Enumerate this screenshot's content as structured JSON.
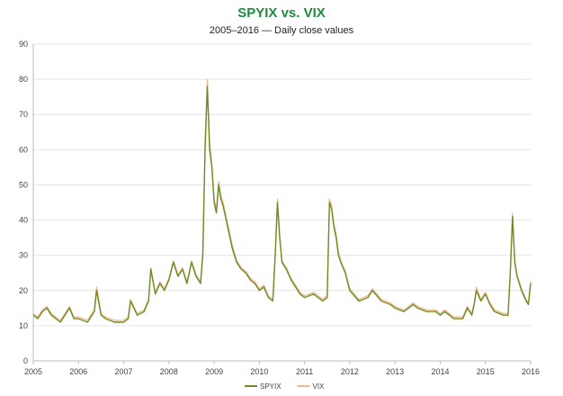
{
  "chart_data": {
    "type": "line",
    "title": "SPYIX vs. VIX",
    "subtitle": "2005–2016 — Daily close values",
    "xlabel": "",
    "ylabel": "",
    "xlim": [
      2005,
      2016
    ],
    "ylim": [
      0,
      90
    ],
    "x_ticks": [
      "2005",
      "2006",
      "2007",
      "2008",
      "2009",
      "2010",
      "2011",
      "2012",
      "2013",
      "2014",
      "2015",
      "2016"
    ],
    "y_ticks": [
      "0",
      "10",
      "20",
      "30",
      "40",
      "50",
      "60",
      "70",
      "80",
      "90"
    ],
    "grid": "horizontal",
    "legend_position": "bottom",
    "colors": {
      "SPYIX": "#6b8e23",
      "VIX": "#f5b48a",
      "title": "#1e8a3c",
      "grid": "#e4e4e4"
    },
    "series": [
      {
        "name": "SPYIX",
        "x": [
          2005.0,
          2005.1,
          2005.2,
          2005.3,
          2005.4,
          2005.5,
          2005.6,
          2005.7,
          2005.8,
          2005.9,
          2006.0,
          2006.2,
          2006.35,
          2006.4,
          2006.5,
          2006.6,
          2006.8,
          2007.0,
          2007.1,
          2007.15,
          2007.3,
          2007.45,
          2007.55,
          2007.6,
          2007.7,
          2007.8,
          2007.9,
          2008.0,
          2008.1,
          2008.2,
          2008.3,
          2008.4,
          2008.5,
          2008.6,
          2008.7,
          2008.75,
          2008.8,
          2008.85,
          2008.9,
          2008.95,
          2009.0,
          2009.05,
          2009.1,
          2009.15,
          2009.2,
          2009.3,
          2009.4,
          2009.5,
          2009.6,
          2009.7,
          2009.8,
          2009.9,
          2010.0,
          2010.1,
          2010.2,
          2010.3,
          2010.35,
          2010.4,
          2010.45,
          2010.5,
          2010.6,
          2010.7,
          2010.8,
          2010.9,
          2011.0,
          2011.2,
          2011.4,
          2011.5,
          2011.55,
          2011.6,
          2011.65,
          2011.7,
          2011.75,
          2011.8,
          2011.9,
          2012.0,
          2012.2,
          2012.4,
          2012.5,
          2012.7,
          2012.9,
          2013.0,
          2013.2,
          2013.4,
          2013.5,
          2013.7,
          2013.9,
          2014.0,
          2014.1,
          2014.3,
          2014.5,
          2014.6,
          2014.7,
          2014.75,
          2014.8,
          2014.9,
          2015.0,
          2015.1,
          2015.2,
          2015.4,
          2015.5,
          2015.55,
          2015.6,
          2015.65,
          2015.7,
          2015.8,
          2015.9,
          2015.95,
          2016.0
        ],
        "values": [
          13,
          12,
          14,
          15,
          13,
          12,
          11,
          13,
          15,
          12,
          12,
          11,
          14,
          20,
          13,
          12,
          11,
          11,
          12,
          17,
          13,
          14,
          17,
          26,
          19,
          22,
          20,
          23,
          28,
          24,
          26,
          22,
          28,
          24,
          22,
          30,
          60,
          78,
          60,
          55,
          45,
          42,
          50,
          46,
          44,
          38,
          32,
          28,
          26,
          25,
          23,
          22,
          20,
          21,
          18,
          17,
          30,
          45,
          35,
          28,
          26,
          23,
          21,
          19,
          18,
          19,
          17,
          18,
          45,
          43,
          38,
          35,
          30,
          28,
          25,
          20,
          17,
          18,
          20,
          17,
          16,
          15,
          14,
          16,
          15,
          14,
          14,
          13,
          14,
          12,
          12,
          15,
          13,
          16,
          20,
          17,
          19,
          16,
          14,
          13,
          13,
          25,
          41,
          28,
          24,
          20,
          17,
          16,
          22
        ]
      },
      {
        "name": "VIX",
        "x": [
          2005.0,
          2005.1,
          2005.2,
          2005.3,
          2005.4,
          2005.5,
          2005.6,
          2005.7,
          2005.8,
          2005.9,
          2006.0,
          2006.2,
          2006.35,
          2006.4,
          2006.5,
          2006.6,
          2006.8,
          2007.0,
          2007.1,
          2007.15,
          2007.3,
          2007.45,
          2007.55,
          2007.6,
          2007.7,
          2007.8,
          2007.9,
          2008.0,
          2008.1,
          2008.2,
          2008.3,
          2008.4,
          2008.5,
          2008.6,
          2008.7,
          2008.75,
          2008.8,
          2008.85,
          2008.9,
          2008.95,
          2009.0,
          2009.05,
          2009.1,
          2009.15,
          2009.2,
          2009.3,
          2009.4,
          2009.5,
          2009.6,
          2009.7,
          2009.8,
          2009.9,
          2010.0,
          2010.1,
          2010.2,
          2010.3,
          2010.35,
          2010.4,
          2010.45,
          2010.5,
          2010.6,
          2010.7,
          2010.8,
          2010.9,
          2011.0,
          2011.2,
          2011.4,
          2011.5,
          2011.55,
          2011.6,
          2011.65,
          2011.7,
          2011.75,
          2011.8,
          2011.9,
          2012.0,
          2012.2,
          2012.4,
          2012.5,
          2012.7,
          2012.9,
          2013.0,
          2013.2,
          2013.4,
          2013.5,
          2013.7,
          2013.9,
          2014.0,
          2014.1,
          2014.3,
          2014.5,
          2014.6,
          2014.7,
          2014.75,
          2014.8,
          2014.9,
          2015.0,
          2015.1,
          2015.2,
          2015.4,
          2015.5,
          2015.55,
          2015.6,
          2015.65,
          2015.7,
          2015.8,
          2015.9,
          2015.95,
          2016.0
        ],
        "values": [
          13.5,
          12.5,
          14.5,
          15.5,
          13.5,
          12.5,
          11.5,
          13.5,
          15.5,
          12.5,
          12.5,
          11.5,
          14.5,
          21,
          13.5,
          12.5,
          11.5,
          11.5,
          12.5,
          17.5,
          13.5,
          14.5,
          17.5,
          26.5,
          19.5,
          22.5,
          20.5,
          23.5,
          28.5,
          24.5,
          26.5,
          22.5,
          28.5,
          24.5,
          22.5,
          31,
          62,
          80,
          62,
          56,
          46,
          43,
          51,
          47,
          45,
          39,
          33,
          28.5,
          26.5,
          25.5,
          23.5,
          22.5,
          20.5,
          21.5,
          18.5,
          17.5,
          31,
          46,
          36,
          28.5,
          26.5,
          23.5,
          21.5,
          19.5,
          18.5,
          19.5,
          17.5,
          18.5,
          46,
          44,
          39,
          36,
          31,
          28.5,
          25.5,
          20.5,
          17.5,
          18.5,
          20.5,
          17.5,
          16.5,
          15.5,
          14.5,
          16.5,
          15.5,
          14.5,
          14.5,
          13.5,
          14.5,
          12.5,
          12.5,
          15.5,
          13.5,
          16.5,
          21,
          17.5,
          19.5,
          16.5,
          14.5,
          13.5,
          13.5,
          26,
          42,
          28.5,
          24.5,
          20.5,
          17.5,
          16.5,
          22.5
        ]
      }
    ]
  }
}
